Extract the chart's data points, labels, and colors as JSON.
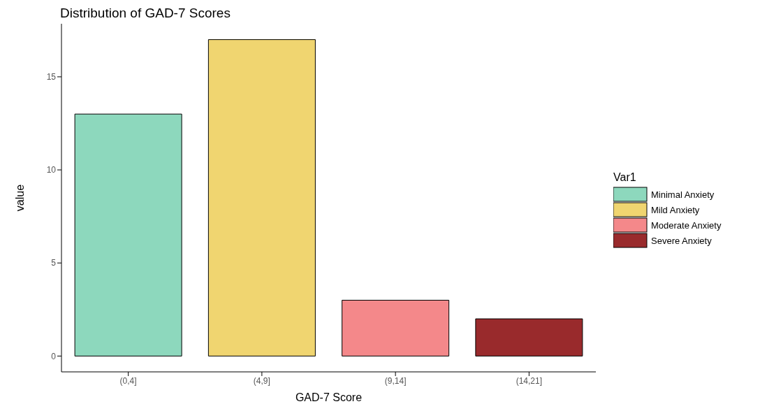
{
  "chart_data": {
    "type": "bar",
    "title": "Distribution of GAD-7 Scores",
    "xlabel": "GAD-7 Score",
    "ylabel": "value",
    "legend_title": "Var1",
    "legend": "right",
    "categories": [
      "(0,4]",
      "(4,9]",
      "(9,14]",
      "(14,21]"
    ],
    "series": [
      {
        "name": "Minimal Anxiety",
        "color": "#8dd8bd",
        "values": [
          13,
          null,
          null,
          null
        ]
      },
      {
        "name": "Mild Anxiety",
        "color": "#f0d570",
        "values": [
          null,
          17,
          null,
          null
        ]
      },
      {
        "name": "Moderate Anxiety",
        "color": "#f4888a",
        "values": [
          null,
          null,
          3,
          null
        ]
      },
      {
        "name": "Severe Anxiety",
        "color": "#992a2c",
        "values": [
          null,
          null,
          null,
          2
        ]
      }
    ],
    "ylim": [
      -0.85,
      17.85
    ],
    "yticks": [
      0,
      5,
      10,
      15
    ]
  }
}
